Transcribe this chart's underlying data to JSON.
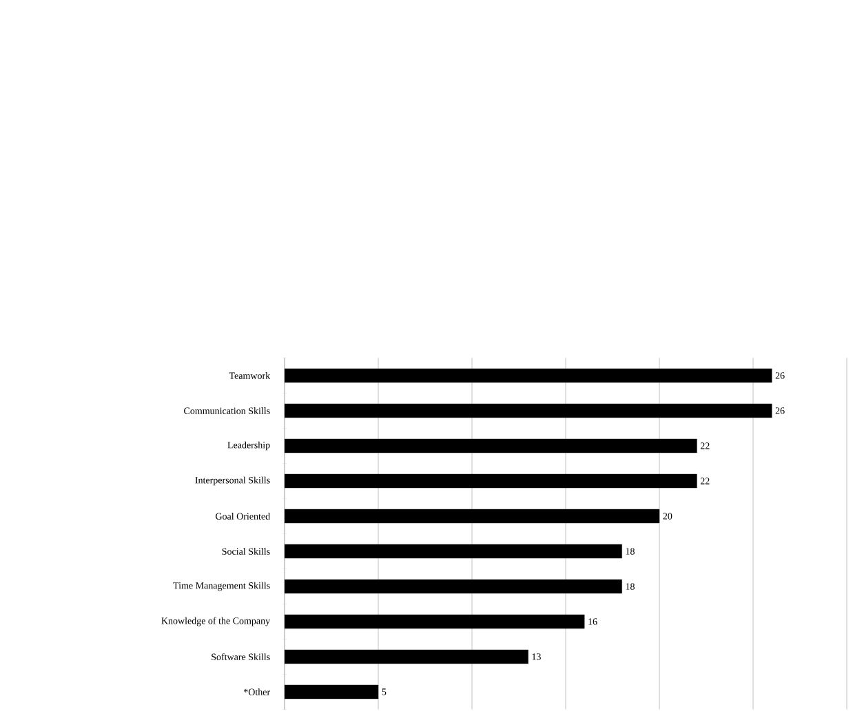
{
  "chart_data": {
    "type": "bar",
    "orientation": "horizontal",
    "categories": [
      "Teamwork",
      "Communication Skills",
      "Leadership",
      "Interpersonal Skills",
      "Goal Oriented",
      "Social Skills",
      "Time Management Skills",
      "Knowledge of the Company",
      "Software Skills",
      "*Other"
    ],
    "values": [
      26,
      26,
      22,
      22,
      20,
      18,
      18,
      16,
      13,
      5
    ],
    "color": "#000000",
    "xlim": [
      0,
      30
    ],
    "xticks": [
      {
        "value": 0,
        "label": null
      },
      {
        "value": 5,
        "label": null
      },
      {
        "value": 10,
        "label": null
      },
      {
        "value": 15,
        "label": null
      },
      {
        "value": 20,
        "label": null
      },
      {
        "value": 25,
        "label": null
      },
      {
        "value": 30,
        "label": null
      }
    ],
    "grid": "x",
    "tick_labels": "y",
    "data_labels": true
  }
}
